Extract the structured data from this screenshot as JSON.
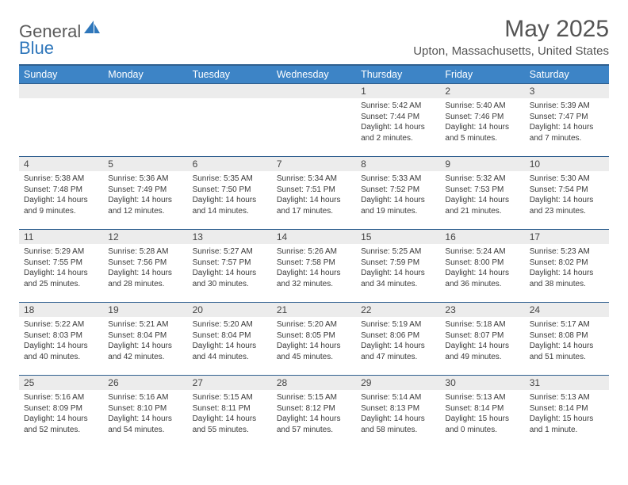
{
  "brand": {
    "text1": "General",
    "text2": "Blue"
  },
  "title": "May 2025",
  "location": "Upton, Massachusetts, United States",
  "colors": {
    "header_bg": "#3d84c6",
    "header_border": "#2f5f8f",
    "daynum_bg": "#ececec",
    "text": "#3a3a3a",
    "brand_gray": "#5a5a5a",
    "brand_blue": "#2f77bb"
  },
  "weekdays": [
    "Sunday",
    "Monday",
    "Tuesday",
    "Wednesday",
    "Thursday",
    "Friday",
    "Saturday"
  ],
  "weeks": [
    [
      {
        "n": "",
        "sunrise": "",
        "sunset": "",
        "daylight": ""
      },
      {
        "n": "",
        "sunrise": "",
        "sunset": "",
        "daylight": ""
      },
      {
        "n": "",
        "sunrise": "",
        "sunset": "",
        "daylight": ""
      },
      {
        "n": "",
        "sunrise": "",
        "sunset": "",
        "daylight": ""
      },
      {
        "n": "1",
        "sunrise": "Sunrise: 5:42 AM",
        "sunset": "Sunset: 7:44 PM",
        "daylight": "Daylight: 14 hours and 2 minutes."
      },
      {
        "n": "2",
        "sunrise": "Sunrise: 5:40 AM",
        "sunset": "Sunset: 7:46 PM",
        "daylight": "Daylight: 14 hours and 5 minutes."
      },
      {
        "n": "3",
        "sunrise": "Sunrise: 5:39 AM",
        "sunset": "Sunset: 7:47 PM",
        "daylight": "Daylight: 14 hours and 7 minutes."
      }
    ],
    [
      {
        "n": "4",
        "sunrise": "Sunrise: 5:38 AM",
        "sunset": "Sunset: 7:48 PM",
        "daylight": "Daylight: 14 hours and 9 minutes."
      },
      {
        "n": "5",
        "sunrise": "Sunrise: 5:36 AM",
        "sunset": "Sunset: 7:49 PM",
        "daylight": "Daylight: 14 hours and 12 minutes."
      },
      {
        "n": "6",
        "sunrise": "Sunrise: 5:35 AM",
        "sunset": "Sunset: 7:50 PM",
        "daylight": "Daylight: 14 hours and 14 minutes."
      },
      {
        "n": "7",
        "sunrise": "Sunrise: 5:34 AM",
        "sunset": "Sunset: 7:51 PM",
        "daylight": "Daylight: 14 hours and 17 minutes."
      },
      {
        "n": "8",
        "sunrise": "Sunrise: 5:33 AM",
        "sunset": "Sunset: 7:52 PM",
        "daylight": "Daylight: 14 hours and 19 minutes."
      },
      {
        "n": "9",
        "sunrise": "Sunrise: 5:32 AM",
        "sunset": "Sunset: 7:53 PM",
        "daylight": "Daylight: 14 hours and 21 minutes."
      },
      {
        "n": "10",
        "sunrise": "Sunrise: 5:30 AM",
        "sunset": "Sunset: 7:54 PM",
        "daylight": "Daylight: 14 hours and 23 minutes."
      }
    ],
    [
      {
        "n": "11",
        "sunrise": "Sunrise: 5:29 AM",
        "sunset": "Sunset: 7:55 PM",
        "daylight": "Daylight: 14 hours and 25 minutes."
      },
      {
        "n": "12",
        "sunrise": "Sunrise: 5:28 AM",
        "sunset": "Sunset: 7:56 PM",
        "daylight": "Daylight: 14 hours and 28 minutes."
      },
      {
        "n": "13",
        "sunrise": "Sunrise: 5:27 AM",
        "sunset": "Sunset: 7:57 PM",
        "daylight": "Daylight: 14 hours and 30 minutes."
      },
      {
        "n": "14",
        "sunrise": "Sunrise: 5:26 AM",
        "sunset": "Sunset: 7:58 PM",
        "daylight": "Daylight: 14 hours and 32 minutes."
      },
      {
        "n": "15",
        "sunrise": "Sunrise: 5:25 AM",
        "sunset": "Sunset: 7:59 PM",
        "daylight": "Daylight: 14 hours and 34 minutes."
      },
      {
        "n": "16",
        "sunrise": "Sunrise: 5:24 AM",
        "sunset": "Sunset: 8:00 PM",
        "daylight": "Daylight: 14 hours and 36 minutes."
      },
      {
        "n": "17",
        "sunrise": "Sunrise: 5:23 AM",
        "sunset": "Sunset: 8:02 PM",
        "daylight": "Daylight: 14 hours and 38 minutes."
      }
    ],
    [
      {
        "n": "18",
        "sunrise": "Sunrise: 5:22 AM",
        "sunset": "Sunset: 8:03 PM",
        "daylight": "Daylight: 14 hours and 40 minutes."
      },
      {
        "n": "19",
        "sunrise": "Sunrise: 5:21 AM",
        "sunset": "Sunset: 8:04 PM",
        "daylight": "Daylight: 14 hours and 42 minutes."
      },
      {
        "n": "20",
        "sunrise": "Sunrise: 5:20 AM",
        "sunset": "Sunset: 8:04 PM",
        "daylight": "Daylight: 14 hours and 44 minutes."
      },
      {
        "n": "21",
        "sunrise": "Sunrise: 5:20 AM",
        "sunset": "Sunset: 8:05 PM",
        "daylight": "Daylight: 14 hours and 45 minutes."
      },
      {
        "n": "22",
        "sunrise": "Sunrise: 5:19 AM",
        "sunset": "Sunset: 8:06 PM",
        "daylight": "Daylight: 14 hours and 47 minutes."
      },
      {
        "n": "23",
        "sunrise": "Sunrise: 5:18 AM",
        "sunset": "Sunset: 8:07 PM",
        "daylight": "Daylight: 14 hours and 49 minutes."
      },
      {
        "n": "24",
        "sunrise": "Sunrise: 5:17 AM",
        "sunset": "Sunset: 8:08 PM",
        "daylight": "Daylight: 14 hours and 51 minutes."
      }
    ],
    [
      {
        "n": "25",
        "sunrise": "Sunrise: 5:16 AM",
        "sunset": "Sunset: 8:09 PM",
        "daylight": "Daylight: 14 hours and 52 minutes."
      },
      {
        "n": "26",
        "sunrise": "Sunrise: 5:16 AM",
        "sunset": "Sunset: 8:10 PM",
        "daylight": "Daylight: 14 hours and 54 minutes."
      },
      {
        "n": "27",
        "sunrise": "Sunrise: 5:15 AM",
        "sunset": "Sunset: 8:11 PM",
        "daylight": "Daylight: 14 hours and 55 minutes."
      },
      {
        "n": "28",
        "sunrise": "Sunrise: 5:15 AM",
        "sunset": "Sunset: 8:12 PM",
        "daylight": "Daylight: 14 hours and 57 minutes."
      },
      {
        "n": "29",
        "sunrise": "Sunrise: 5:14 AM",
        "sunset": "Sunset: 8:13 PM",
        "daylight": "Daylight: 14 hours and 58 minutes."
      },
      {
        "n": "30",
        "sunrise": "Sunrise: 5:13 AM",
        "sunset": "Sunset: 8:14 PM",
        "daylight": "Daylight: 15 hours and 0 minutes."
      },
      {
        "n": "31",
        "sunrise": "Sunrise: 5:13 AM",
        "sunset": "Sunset: 8:14 PM",
        "daylight": "Daylight: 15 hours and 1 minute."
      }
    ]
  ]
}
